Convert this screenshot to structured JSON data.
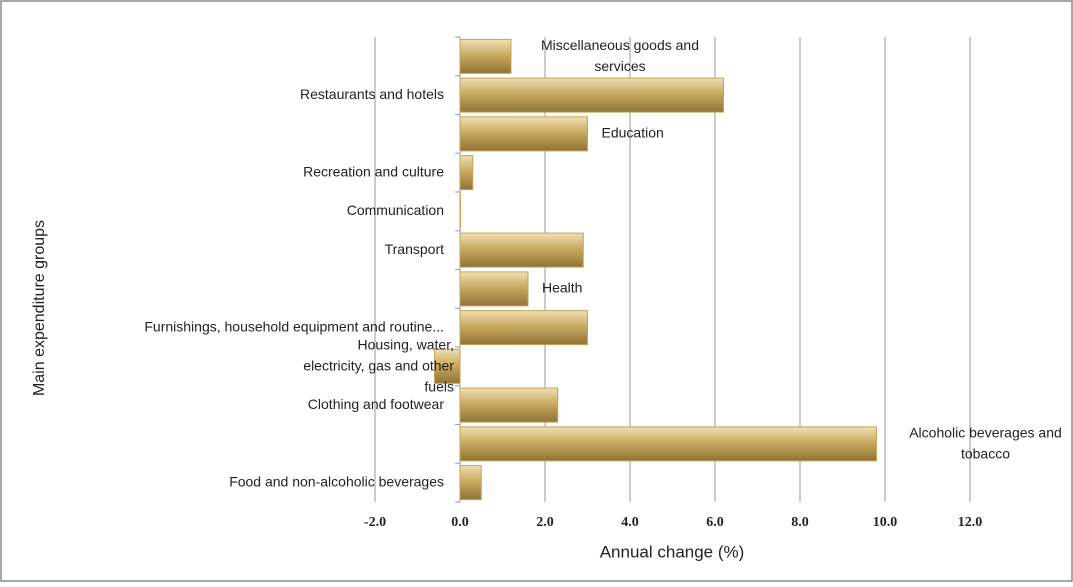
{
  "chart_data": {
    "type": "barh",
    "categories": [
      "Food and non-alcoholic beverages",
      "Alcoholic beverages and tobacco",
      "Clothing and footwear",
      "Housing, water, electricity, gas and other fuels",
      "Furnishings, household equipment and routine...",
      "Health",
      "Transport",
      "Communication",
      "Recreation and culture",
      "Education",
      "Restaurants and hotels",
      "Miscellaneous goods and services"
    ],
    "values": [
      0.5,
      9.8,
      2.3,
      -0.6,
      3.0,
      1.6,
      2.9,
      0.0,
      0.3,
      3.0,
      6.2,
      1.2
    ],
    "color": "#c4a458",
    "xlim": [
      -2,
      12
    ],
    "xticks": [
      {
        "value": -2,
        "label": "-2.0"
      },
      {
        "value": 0,
        "label": "0.0"
      },
      {
        "value": 2,
        "label": "2.0"
      },
      {
        "value": 4,
        "label": "4.0"
      },
      {
        "value": 6,
        "label": "6.0"
      },
      {
        "value": 8,
        "label": "8.0"
      },
      {
        "value": 10,
        "label": "10.0"
      },
      {
        "value": 12,
        "label": "12.0"
      }
    ],
    "xlabel": "Annual change (%)",
    "ylabel": "Main expenditure groups",
    "grid": true
  }
}
